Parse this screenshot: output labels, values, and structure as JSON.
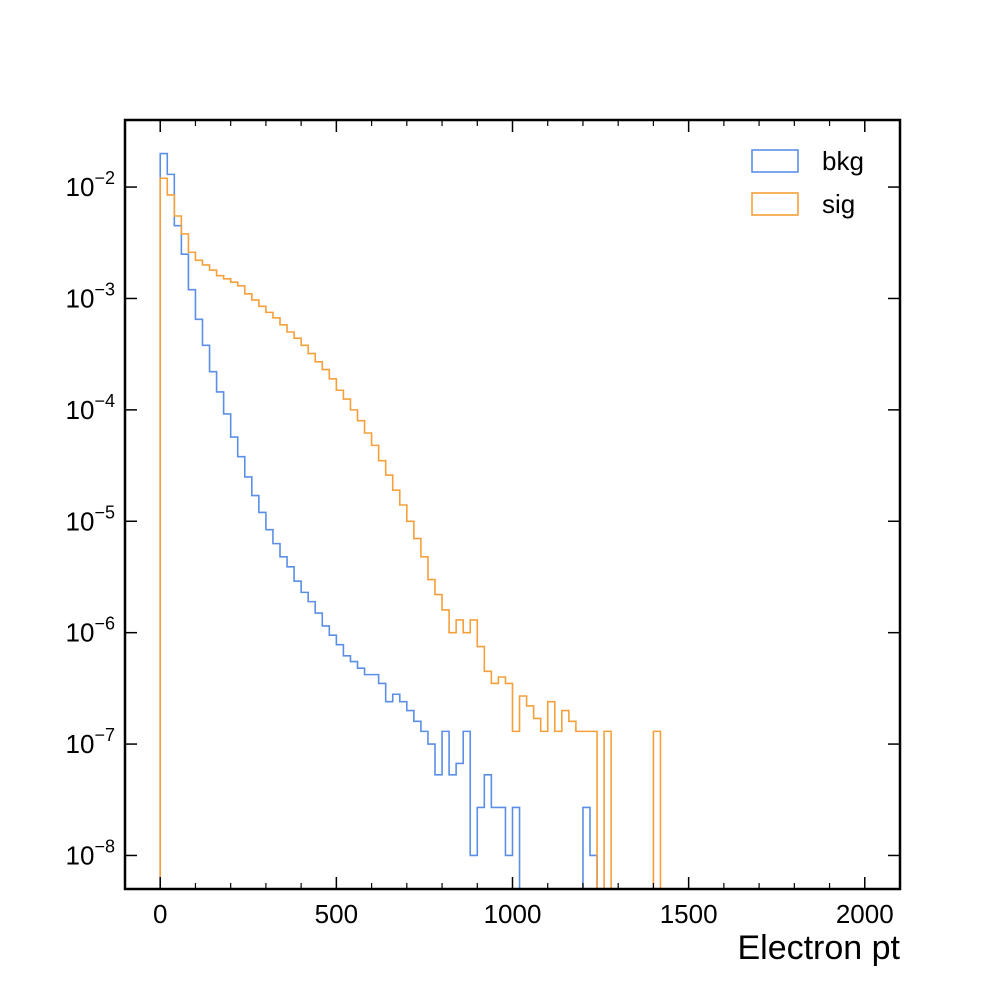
{
  "chart_data": {
    "type": "histogram",
    "xlabel": "Electron pt",
    "ylabel": "",
    "title": "",
    "xlim": [
      -100,
      2100
    ],
    "ylim": [
      5e-09,
      0.04
    ],
    "yscale": "log",
    "x_ticks": [
      0,
      500,
      1000,
      1500,
      2000
    ],
    "x_tick_labels": [
      "0",
      "500",
      "1000",
      "1500",
      "2000"
    ],
    "y_ticks": [
      1e-08,
      1e-07,
      1e-06,
      1e-05,
      0.0001,
      0.001,
      0.01
    ],
    "y_tick_labels": [
      {
        "base": "10",
        "exp": "−8"
      },
      {
        "base": "10",
        "exp": "−7"
      },
      {
        "base": "10",
        "exp": "−6"
      },
      {
        "base": "10",
        "exp": "−5"
      },
      {
        "base": "10",
        "exp": "−4"
      },
      {
        "base": "10",
        "exp": "−3"
      },
      {
        "base": "10",
        "exp": "−2"
      }
    ],
    "grid": false,
    "legend": {
      "position": "top-right"
    },
    "bin_edges_start": 0,
    "bin_width": 20,
    "series": [
      {
        "name": "bkg",
        "color": "#5b8fe6",
        "values": [
          0.02,
          0.013,
          0.0045,
          0.0025,
          0.0012,
          0.00065,
          0.00038,
          0.00022,
          0.000145,
          9.2e-05,
          5.7e-05,
          3.8e-05,
          2.5e-05,
          1.7e-05,
          1.2e-05,
          8.4e-06,
          6.3e-06,
          4.8e-06,
          3.9e-06,
          2.9e-06,
          2.3e-06,
          1.9e-06,
          1.5e-06,
          1.15e-06,
          9.5e-07,
          7.8e-07,
          6.2e-07,
          5.5e-07,
          4.8e-07,
          4.2e-07,
          4.2e-07,
          3.5e-07,
          2.4e-07,
          2.8e-07,
          2.4e-07,
          2e-07,
          1.6e-07,
          1.3e-07,
          1e-07,
          5.3e-08,
          1.3e-07,
          5.3e-08,
          6.7e-08,
          1.3e-07,
          1e-08,
          2.7e-08,
          5.3e-08,
          2.7e-08,
          2.7e-08,
          1e-08,
          2.7e-08,
          0,
          0,
          0,
          0,
          0,
          0,
          0,
          0,
          0,
          0,
          0,
          0,
          0,
          0,
          0,
          0,
          0,
          0,
          0,
          0,
          0,
          0,
          0,
          0,
          0,
          0,
          0,
          0,
          0,
          0,
          0,
          0,
          0,
          0,
          0,
          0,
          0,
          0,
          0,
          0,
          0,
          0,
          0,
          0,
          0,
          0,
          0,
          0,
          0,
          0,
          0,
          0,
          0,
          0,
          0,
          0,
          0,
          0,
          0
        ],
        "overrides": {
          "60": 2.7e-08,
          "61": 1e-08
        }
      },
      {
        "name": "sig",
        "color": "#f5a03b",
        "values": [
          0.012,
          0.0085,
          0.0055,
          0.0038,
          0.0026,
          0.0022,
          0.002,
          0.0018,
          0.0016,
          0.0015,
          0.0014,
          0.0013,
          0.0011,
          0.00097,
          0.00085,
          0.00075,
          0.00067,
          0.00058,
          0.0005,
          0.00044,
          0.00038,
          0.00032,
          0.00027,
          0.00023,
          0.00019,
          0.00015,
          0.000125,
          0.0001,
          8e-05,
          6.2e-05,
          4.8e-05,
          3.5e-05,
          2.6e-05,
          1.9e-05,
          1.4e-05,
          1e-05,
          7e-06,
          4.8e-06,
          3e-06,
          2.2e-06,
          1.6e-06,
          1e-06,
          1.3e-06,
          1e-06,
          1.3e-06,
          7.5e-07,
          4.5e-07,
          3.5e-07,
          4e-07,
          3.5e-07,
          1.3e-07,
          2.7e-07,
          2.2e-07,
          1.7e-07,
          1.3e-07,
          2.4e-07,
          1.3e-07,
          2e-07,
          1.6e-07,
          1.3e-07,
          1.3e-07,
          1.3e-07,
          0,
          1.3e-07,
          0,
          0,
          0,
          0,
          0,
          0,
          1.3e-07,
          0,
          0,
          0,
          0,
          0,
          0,
          0,
          0,
          0,
          0,
          0,
          0,
          0,
          0,
          0,
          0,
          0,
          0,
          0,
          0,
          0,
          0,
          0,
          0,
          0,
          0,
          0,
          0,
          0,
          0,
          0,
          0,
          0,
          0,
          0,
          0,
          0,
          0,
          0
        ]
      }
    ]
  }
}
